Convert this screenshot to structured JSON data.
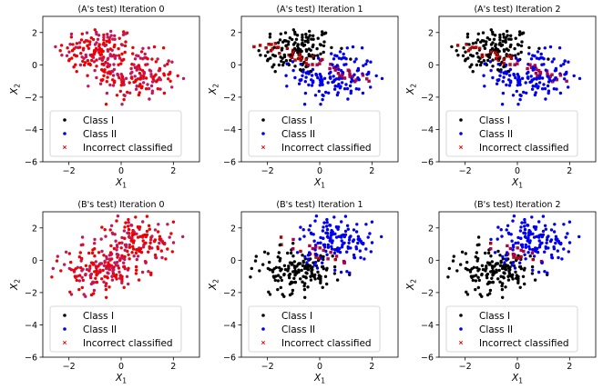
{
  "figure": {
    "colors": {
      "class_1": "#000000",
      "class_2": "#0000ee",
      "incorrect": "#ee0000",
      "mixed": "#c2185b"
    }
  },
  "chart_data": [
    {
      "type": "scatter",
      "title": "(A's test) Iteration 0",
      "xlabel": "X",
      "xlabel_sub": "1",
      "ylabel": "X",
      "ylabel_sub": "2",
      "xlim": [
        -3,
        3
      ],
      "ylim": [
        -6,
        3
      ],
      "xticks": [
        -2,
        0,
        2
      ],
      "yticks": [
        -6,
        -4,
        -2,
        0,
        2
      ],
      "grid": false,
      "legend": {
        "placement": "lower-center",
        "entries": [
          "Class I",
          "Class II",
          "Incorrect classified"
        ]
      },
      "pattern": "mixed_A",
      "description_counts": {
        "points_per_class": 160
      }
    },
    {
      "type": "scatter",
      "title": "(A's test) Iteration 1",
      "xlabel": "X",
      "xlabel_sub": "1",
      "ylabel": "X",
      "ylabel_sub": "2",
      "xlim": [
        -3,
        3
      ],
      "ylim": [
        -6,
        3
      ],
      "xticks": [
        -2,
        0,
        2
      ],
      "yticks": [
        -6,
        -4,
        -2,
        0,
        2
      ],
      "grid": false,
      "legend": {
        "placement": "lower-center",
        "entries": [
          "Class I",
          "Class II",
          "Incorrect classified"
        ]
      },
      "pattern": "split_A"
    },
    {
      "type": "scatter",
      "title": "(A's test) Iteration 2",
      "xlabel": "X",
      "xlabel_sub": "1",
      "ylabel": "X",
      "ylabel_sub": "2",
      "xlim": [
        -3,
        3
      ],
      "ylim": [
        -6,
        3
      ],
      "xticks": [
        -2,
        0,
        2
      ],
      "yticks": [
        -6,
        -4,
        -2,
        0,
        2
      ],
      "grid": false,
      "legend": {
        "placement": "lower-center",
        "entries": [
          "Class I",
          "Class II",
          "Incorrect classified"
        ]
      },
      "pattern": "split_A"
    },
    {
      "type": "scatter",
      "title": "(B's test) Iteration 0",
      "xlabel": "X",
      "xlabel_sub": "1",
      "ylabel": "X",
      "ylabel_sub": "2",
      "xlim": [
        -3,
        3
      ],
      "ylim": [
        -6,
        3
      ],
      "xticks": [
        -2,
        0,
        2
      ],
      "yticks": [
        -6,
        -4,
        -2,
        0,
        2
      ],
      "grid": false,
      "legend": {
        "placement": "lower-center",
        "entries": [
          "Class I",
          "Class II",
          "Incorrect classified"
        ]
      },
      "pattern": "mixed_B"
    },
    {
      "type": "scatter",
      "title": "(B's test) Iteration 1",
      "xlabel": "X",
      "xlabel_sub": "1",
      "ylabel": "X",
      "ylabel_sub": "2",
      "xlim": [
        -3,
        3
      ],
      "ylim": [
        -6,
        3
      ],
      "xticks": [
        -2,
        0,
        2
      ],
      "yticks": [
        -6,
        -4,
        -2,
        0,
        2
      ],
      "grid": false,
      "legend": {
        "placement": "lower-center",
        "entries": [
          "Class I",
          "Class II",
          "Incorrect classified"
        ]
      },
      "pattern": "split_B"
    },
    {
      "type": "scatter",
      "title": "(B's test) Iteration 2",
      "xlabel": "X",
      "xlabel_sub": "1",
      "ylabel": "X",
      "ylabel_sub": "2",
      "xlim": [
        -3,
        3
      ],
      "ylim": [
        -6,
        3
      ],
      "xticks": [
        -2,
        0,
        2
      ],
      "yticks": [
        -6,
        -4,
        -2,
        0,
        2
      ],
      "grid": false,
      "legend": {
        "placement": "lower-center",
        "entries": [
          "Class I",
          "Class II",
          "Incorrect classified"
        ]
      },
      "pattern": "split_B"
    }
  ]
}
